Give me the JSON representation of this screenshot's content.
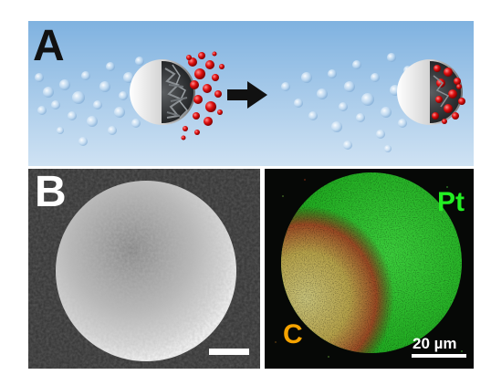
{
  "figure": {
    "panel_a": {
      "letter": "A"
    },
    "panel_b": {
      "letter": "B",
      "label_pt": "Pt",
      "label_c": "C",
      "scale_text": "20 µm"
    },
    "colors": {
      "sky": "#9fc6e7",
      "pt": "#22ee22",
      "c": "#f5a300",
      "particle": "#e11010"
    }
  }
}
